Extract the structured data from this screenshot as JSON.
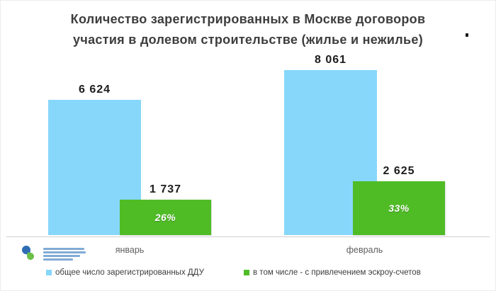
{
  "title": {
    "line1": "Количество зарегистрированных в Москве договоров",
    "line2": "участия в долевом строительстве (жилье и нежилье)"
  },
  "chart_data": {
    "type": "bar",
    "title": "Количество зарегистрированных в Москве договоров участия в долевом строительстве (жилье и нежилье)",
    "categories": [
      "январь",
      "февраль"
    ],
    "series": [
      {
        "name": "общее число зарегистрированных ДДУ",
        "color": "#87d7fb",
        "values": [
          6624,
          8061
        ],
        "value_labels": [
          "6 624",
          "8 061"
        ]
      },
      {
        "name": "в том числе - с привлечением эскроу-счетов",
        "color": "#4fbc26",
        "values": [
          1737,
          2625
        ],
        "value_labels": [
          "1 737",
          "2 625"
        ],
        "percent_labels": [
          "26%",
          "33%"
        ]
      }
    ],
    "ylim": [
      0,
      8500
    ],
    "grid": false,
    "legend_position": "bottom",
    "bar_style": "overlapped"
  },
  "colors": {
    "total_bar": "#87d7fb",
    "escrow_bar": "#4fbc26",
    "axis": "#cfcfcf",
    "title_text": "#3d3d3d",
    "value_text": "#1c1c1c",
    "percent_text": "#ffffff"
  }
}
